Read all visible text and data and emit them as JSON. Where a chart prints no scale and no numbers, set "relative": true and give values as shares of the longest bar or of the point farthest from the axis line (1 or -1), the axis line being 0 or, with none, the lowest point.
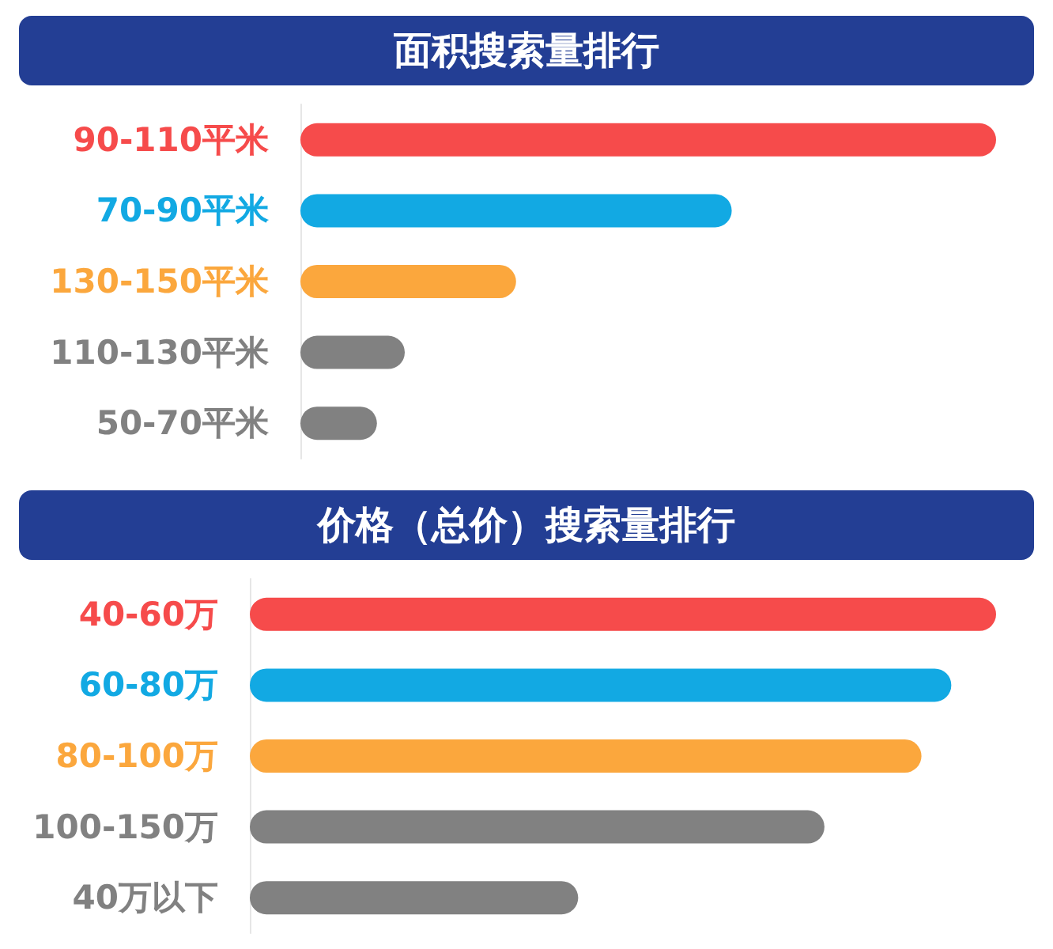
{
  "chart_data": [
    {
      "type": "bar",
      "orientation": "horizontal",
      "relative": true,
      "title": "面积搜索量排行",
      "categories": [
        "90-110平米",
        "70-90平米",
        "130-150平米",
        "110-130平米",
        "50-70平米"
      ],
      "values": [
        1,
        0.62,
        0.31,
        0.15,
        0.11
      ],
      "colors": [
        "#f64b4b",
        "#12a9e3",
        "#fba73d",
        "#818181",
        "#818181"
      ]
    },
    {
      "type": "bar",
      "orientation": "horizontal",
      "relative": true,
      "title": "价格（总价）搜索量排行",
      "categories": [
        "40-60万",
        "60-80万",
        "80-100万",
        "100-150万",
        "40万以下"
      ],
      "values": [
        1,
        0.94,
        0.9,
        0.77,
        0.44
      ],
      "colors": [
        "#f64b4b",
        "#12a9e3",
        "#fba73d",
        "#818181",
        "#818181"
      ]
    }
  ]
}
